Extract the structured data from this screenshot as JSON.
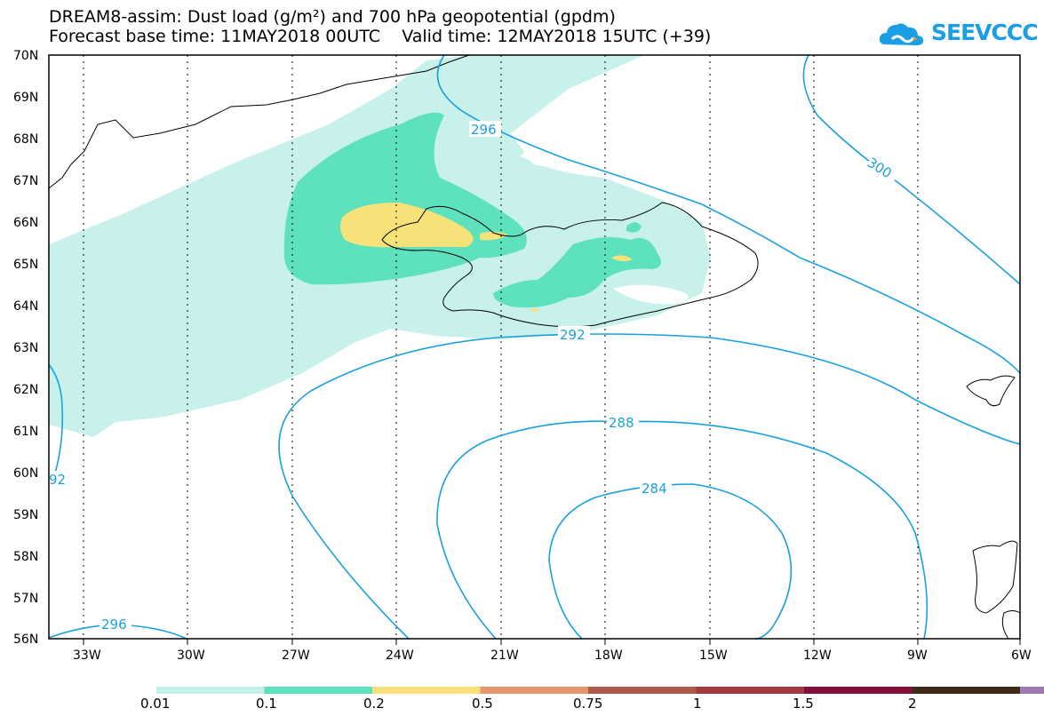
{
  "header": {
    "line1": "DREAM8-assim: Dust load (g/m²) and 700 hPa geopotential (gpdm)",
    "line2": "Forecast base time: 11MAY2018 00UTC    Valid time: 12MAY2018 15UTC (+39)"
  },
  "logo": {
    "text": "SEEVCCC",
    "icon": "cloud-icon",
    "color": "#1a9ee6"
  },
  "map": {
    "lat_labels": [
      "70N",
      "69N",
      "68N",
      "67N",
      "66N",
      "65N",
      "64N",
      "63N",
      "62N",
      "61N",
      "60N",
      "59N",
      "58N",
      "57N",
      "56N"
    ],
    "lon_labels": [
      "33W",
      "30W",
      "27W",
      "24W",
      "21W",
      "18W",
      "15W",
      "12W",
      "9W",
      "6W"
    ],
    "contour_labels": [
      "296",
      "300",
      "292",
      "288",
      "284",
      "296",
      "92"
    ],
    "contour_color": "#1aa0e0"
  },
  "legend": {
    "colors": [
      "#c7f1ea",
      "#5ee2bd",
      "#f7e27a",
      "#e8956d",
      "#b1584c",
      "#a03a3e",
      "#83103a",
      "#3f2a1a",
      "#9f78ad"
    ],
    "labels": [
      "0.01",
      "0.1",
      "0.2",
      "0.5",
      "0.75",
      "1",
      "1.5",
      "2"
    ]
  }
}
